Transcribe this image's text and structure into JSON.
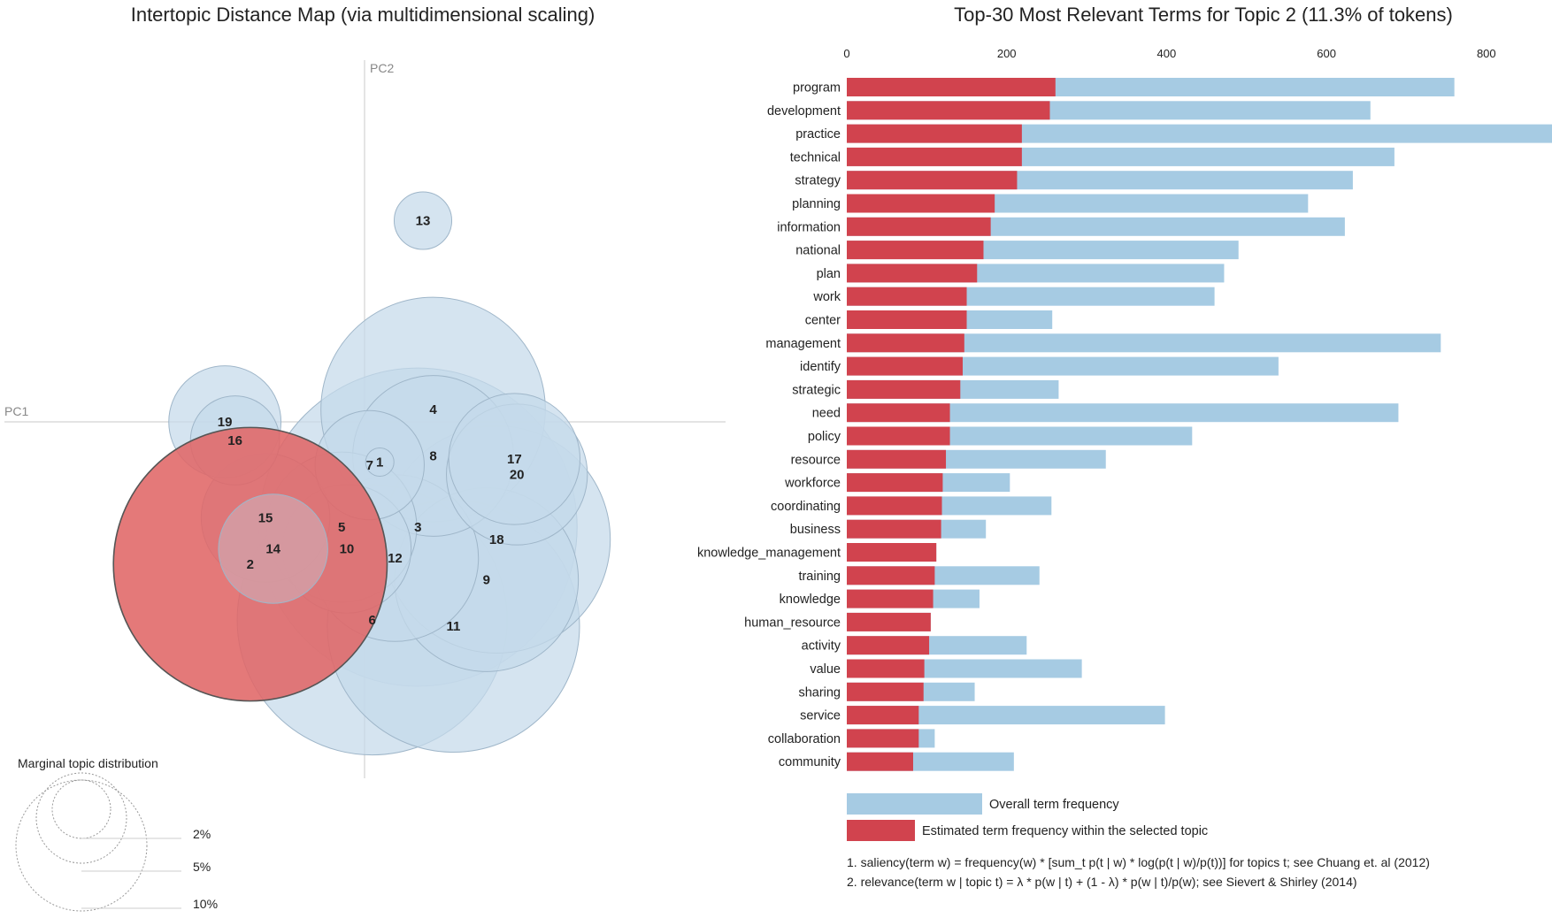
{
  "left_panel": {
    "title": "Intertopic Distance Map (via multidimensional scaling)",
    "pc1_label": "PC1",
    "pc2_label": "PC2",
    "marginal": {
      "title": "Marginal topic distribution",
      "labels": [
        "2%",
        "5%",
        "10%"
      ]
    }
  },
  "right_panel": {
    "title": "Top-30 Most Relevant Terms for Topic 2 (11.3% of tokens)",
    "legend": {
      "overall_label": "Overall term frequency",
      "topic_label": "Estimated term frequency within the selected topic"
    },
    "notes": [
      "1. saliency(term w) = frequency(w) * [sum_t p(t | w) * log(p(t | w)/p(t))] for topics t; see Chuang et. al (2012)",
      "2. relevance(term w | topic t) = λ * p(w | t) + (1 - λ) * p(w | t)/p(w); see Sievert & Shirley (2014)"
    ]
  },
  "colors": {
    "overall": "#a6cbe3",
    "topic": "#d1434e",
    "bubble_fill": "#c5d9ea",
    "bubble_stroke": "#9fb6c9",
    "selected_fill": "#e06666",
    "selected_stroke": "#555555"
  },
  "chart_data": [
    {
      "type": "scatter",
      "title": "Intertopic Distance Map (via multidimensional scaling)",
      "xlabel": "PC1",
      "ylabel": "PC2",
      "selected_topic": 2,
      "topics": [
        {
          "id": 1,
          "x": 0.06,
          "y": -0.13,
          "share": 0.0
        },
        {
          "id": 2,
          "x": -0.45,
          "y": -0.46,
          "share": 11.3
        },
        {
          "id": 3,
          "x": 0.21,
          "y": -0.34,
          "share": 15.3
        },
        {
          "id": 4,
          "x": 0.27,
          "y": 0.04,
          "share": 7.6
        },
        {
          "id": 5,
          "x": -0.09,
          "y": -0.34,
          "share": 3.4
        },
        {
          "id": 6,
          "x": 0.03,
          "y": -0.64,
          "share": 11.0
        },
        {
          "id": 7,
          "x": 0.02,
          "y": -0.14,
          "share": 1.8
        },
        {
          "id": 8,
          "x": 0.27,
          "y": -0.11,
          "share": 3.9
        },
        {
          "id": 9,
          "x": 0.48,
          "y": -0.51,
          "share": 5.1
        },
        {
          "id": 10,
          "x": -0.07,
          "y": -0.41,
          "share": 2.5
        },
        {
          "id": 11,
          "x": 0.35,
          "y": -0.66,
          "share": 9.6
        },
        {
          "id": 12,
          "x": 0.12,
          "y": -0.44,
          "share": 4.2
        },
        {
          "id": 13,
          "x": 0.23,
          "y": 0.65,
          "share": 0.5
        },
        {
          "id": 14,
          "x": -0.36,
          "y": -0.41,
          "share": 1.8
        },
        {
          "id": 15,
          "x": -0.39,
          "y": -0.31,
          "share": 2.5
        },
        {
          "id": 16,
          "x": -0.51,
          "y": -0.06,
          "share": 1.2
        },
        {
          "id": 17,
          "x": 0.59,
          "y": -0.12,
          "share": 2.6
        },
        {
          "id": 18,
          "x": 0.52,
          "y": -0.38,
          "share": 7.8
        },
        {
          "id": 19,
          "x": -0.55,
          "y": 0.0,
          "share": 1.9
        },
        {
          "id": 20,
          "x": 0.6,
          "y": -0.17,
          "share": 3.0
        }
      ]
    },
    {
      "type": "bar",
      "title": "Top-30 Most Relevant Terms for Topic 2 (11.3% of tokens)",
      "xlim": [
        0,
        880
      ],
      "xticks": [
        0,
        200,
        400,
        600,
        800
      ],
      "categories": [
        "program",
        "development",
        "practice",
        "technical",
        "strategy",
        "planning",
        "information",
        "national",
        "plan",
        "work",
        "center",
        "management",
        "identify",
        "strategic",
        "need",
        "policy",
        "resource",
        "workforce",
        "coordinating",
        "business",
        "knowledge_management",
        "training",
        "knowledge",
        "human_resource",
        "activity",
        "value",
        "sharing",
        "service",
        "collaboration",
        "community"
      ],
      "series": [
        {
          "name": "Overall term frequency",
          "values": [
            760,
            655,
            885,
            685,
            633,
            577,
            623,
            490,
            472,
            460,
            257,
            743,
            540,
            265,
            690,
            432,
            324,
            204,
            256,
            174,
            112,
            241,
            166,
            105,
            225,
            294,
            160,
            398,
            110,
            209
          ]
        },
        {
          "name": "Estimated term frequency within the selected topic",
          "values": [
            261,
            254,
            219,
            219,
            213,
            185,
            180,
            171,
            163,
            150,
            150,
            147,
            145,
            142,
            129,
            129,
            124,
            120,
            119,
            118,
            112,
            110,
            108,
            105,
            103,
            97,
            96,
            90,
            90,
            83
          ]
        }
      ]
    }
  ]
}
